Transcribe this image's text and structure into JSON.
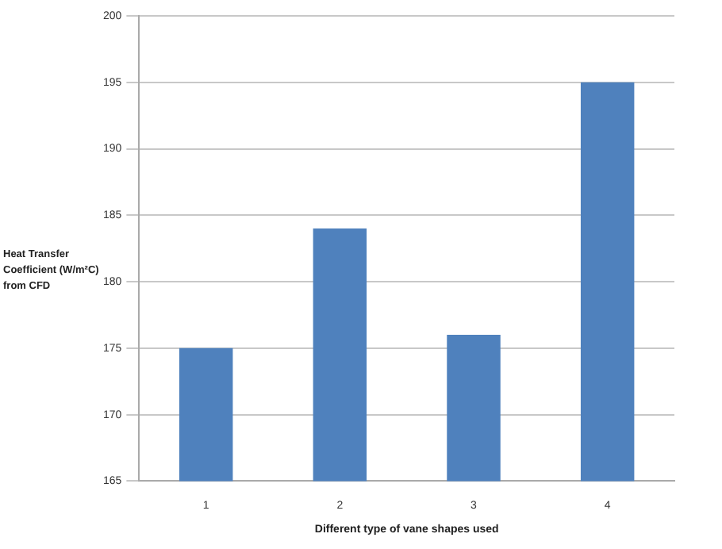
{
  "chart_data": {
    "type": "bar",
    "xlabel": "Different type of vane shapes used",
    "ylabel": "Heat Transfer Coefficient (W/m²C) from CFD",
    "categories": [
      "1",
      "2",
      "3",
      "4"
    ],
    "values": [
      175,
      184,
      176,
      195
    ],
    "color": "#4f81bd",
    "ylim": [
      165,
      200
    ],
    "yticks": [
      165,
      170,
      175,
      180,
      185,
      190,
      195,
      200
    ],
    "grid": "y",
    "legend": false
  }
}
